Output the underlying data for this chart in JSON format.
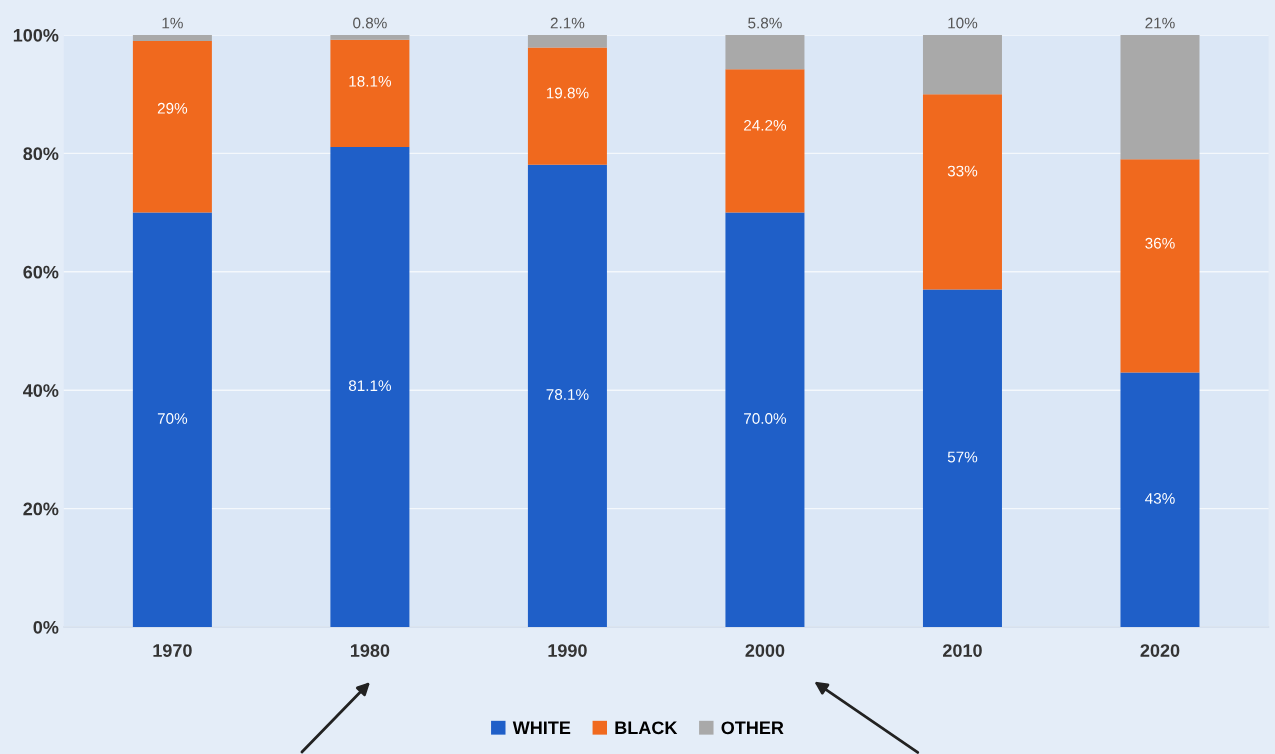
{
  "chart_data": {
    "type": "bar",
    "stacked": true,
    "categories": [
      "1970",
      "1980",
      "1990",
      "2000",
      "2010",
      "2020"
    ],
    "series": [
      {
        "name": "WHITE",
        "color": "#1f5fc8",
        "values": [
          70,
          81.1,
          78.1,
          70.0,
          57,
          43
        ],
        "value_labels": [
          "70%",
          "81.1%",
          "78.1%",
          "70.0%",
          "57%",
          "43%"
        ]
      },
      {
        "name": "BLACK",
        "color": "#f0691e",
        "values": [
          29,
          18.1,
          19.8,
          24.2,
          33,
          36
        ],
        "value_labels": [
          "29%",
          "18.1%",
          "19.8%",
          "24.2%",
          "33%",
          "36%"
        ]
      },
      {
        "name": "OTHER",
        "color": "#a9a9a9",
        "values": [
          1,
          0.8,
          2.1,
          5.8,
          10,
          21
        ],
        "value_labels": [
          "1%",
          "0.8%",
          "2.1%",
          "5.8%",
          "10%",
          "21%"
        ]
      }
    ],
    "ylim": [
      0,
      100
    ],
    "yticks": [
      {
        "value": 0,
        "label": "0%"
      },
      {
        "value": 20,
        "label": "20%"
      },
      {
        "value": 40,
        "label": "40%"
      },
      {
        "value": 60,
        "label": "60%"
      },
      {
        "value": 80,
        "label": "80%"
      },
      {
        "value": 100,
        "label": "100%"
      }
    ],
    "grid": "y",
    "legend": "bottom"
  }
}
